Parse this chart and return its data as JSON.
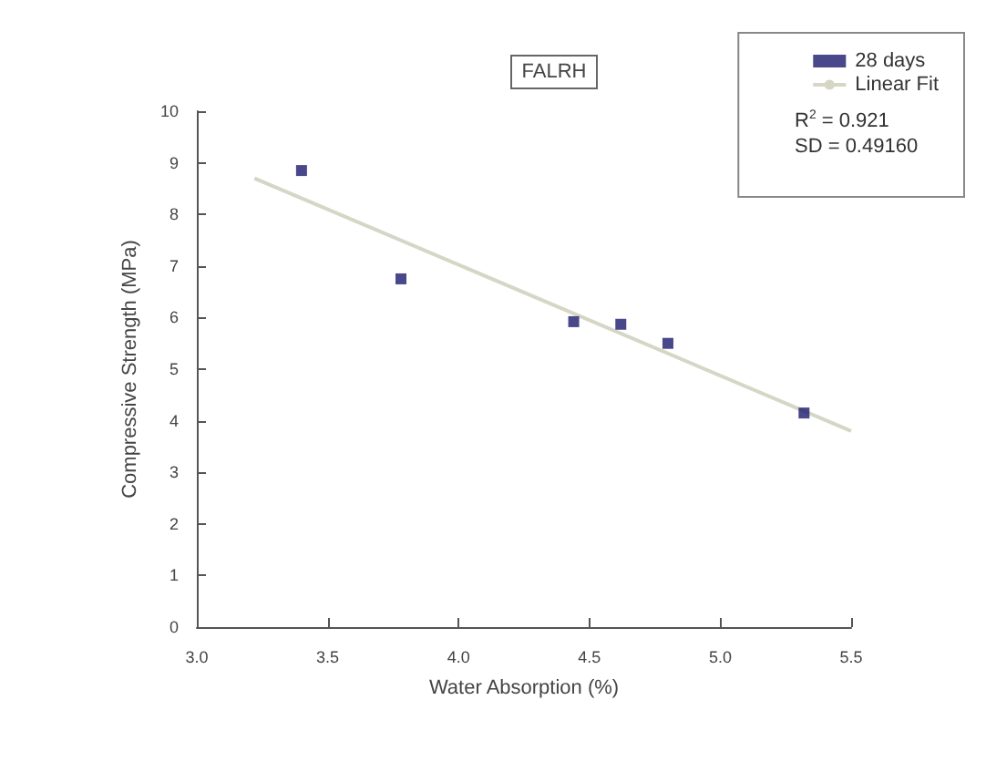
{
  "chart_data": {
    "type": "scatter",
    "title": "FALRH",
    "xlabel": "Water Absorption (%)",
    "ylabel": "Compressive Strength (MPa)",
    "series": [
      {
        "name": "28 days",
        "color": "#1a1a6e",
        "marker": "square",
        "x": [
          3.4,
          3.78,
          4.44,
          4.62,
          4.8,
          5.32
        ],
        "values": [
          8.85,
          6.75,
          5.92,
          5.87,
          5.5,
          4.15
        ]
      },
      {
        "name": "Linear Fit",
        "type": "line",
        "color": "#d6d6c6",
        "marker": "none",
        "x": [
          3.22,
          5.5
        ],
        "values": [
          8.7,
          3.8
        ]
      }
    ],
    "xlim": [
      3.0,
      5.5
    ],
    "xticks": [
      {
        "value": 3,
        "label": "3.0"
      },
      3.5,
      {
        "value": 4,
        "label": "4.0"
      },
      4.5,
      {
        "value": 5,
        "label": "5.0"
      },
      5.5
    ],
    "ylim": [
      0,
      10
    ],
    "yticks": [
      0,
      1,
      2,
      3,
      4,
      5,
      6,
      7,
      8,
      9,
      10
    ],
    "annotations": [
      "R$^{2}$ = 0.921",
      "SD = 0.49160"
    ],
    "legend": "top right",
    "grid": false
  }
}
